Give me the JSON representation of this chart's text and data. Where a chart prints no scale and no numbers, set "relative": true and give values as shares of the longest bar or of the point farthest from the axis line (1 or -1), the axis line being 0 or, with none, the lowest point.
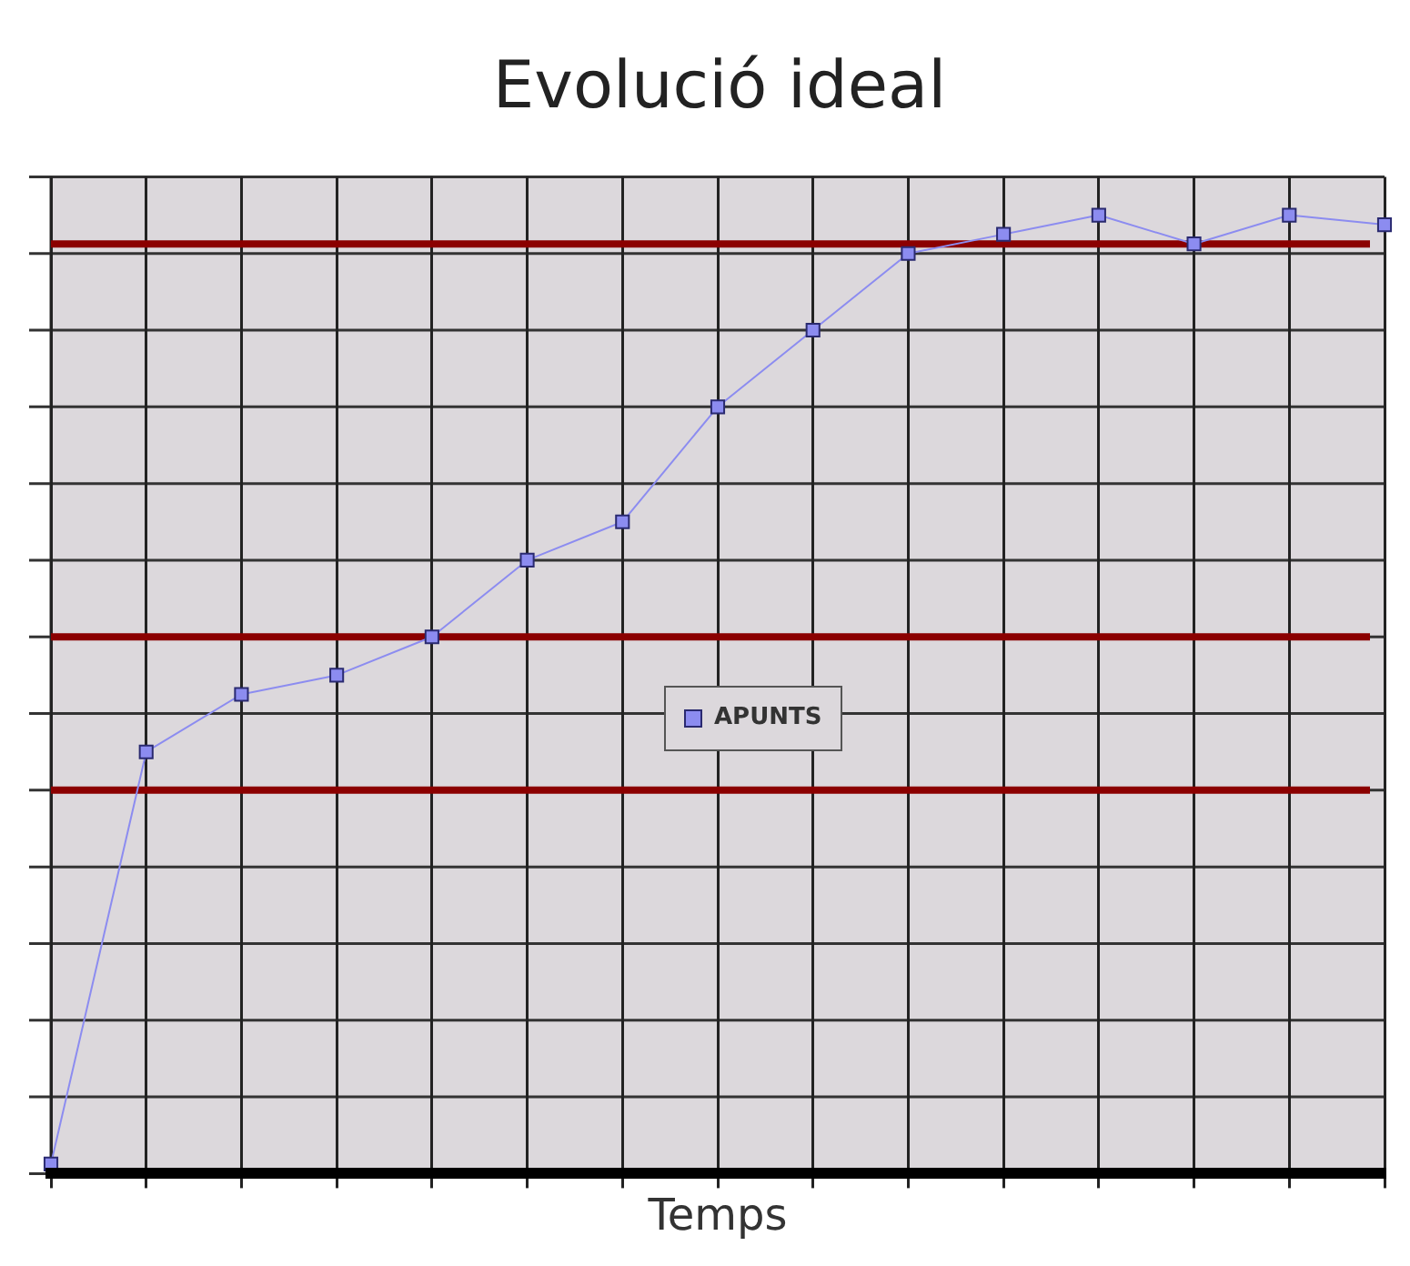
{
  "chart_data": {
    "type": "line",
    "title": "Evolució ideal",
    "xlabel": "Temps",
    "relative": true,
    "categories": [
      null,
      null,
      null,
      null,
      null,
      null,
      null,
      null,
      null,
      null,
      null,
      null,
      null,
      null,
      null
    ],
    "series": [
      {
        "name": "APUNTS",
        "color": "#8c8cf0",
        "values": [
          0.01,
          0.44,
          0.5,
          0.52,
          0.56,
          0.64,
          0.68,
          0.8,
          0.88,
          0.96,
          0.98,
          1.0,
          0.97,
          1.0,
          0.99
        ]
      }
    ],
    "ref_lines": [
      {
        "axis": "y",
        "value": 0.97,
        "color": "#8b0000"
      },
      {
        "axis": "y",
        "value": 0.56,
        "color": "#8b0000"
      },
      {
        "axis": "y",
        "value": 0.4,
        "color": "#8b0000"
      }
    ],
    "grid": true,
    "legend": "center",
    "marker": "square",
    "line_style": "solid"
  }
}
